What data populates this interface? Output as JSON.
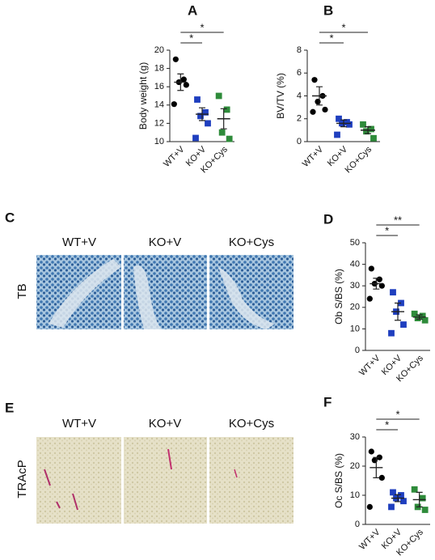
{
  "chart_data": [
    {
      "type": "dotplot",
      "title": "A",
      "ylabel": "Body weight (g)",
      "ylim": [
        10,
        20
      ],
      "yticks": [
        10,
        12,
        14,
        16,
        18,
        20
      ],
      "series": [
        {
          "name": "WT+V",
          "color": "#000000",
          "marker": "circle",
          "values": [
            19.0,
            16.8,
            16.5,
            16.2,
            14.1
          ],
          "mean": 16.5,
          "error": 0.9
        },
        {
          "name": "KO+V",
          "color": "#1f3fbf",
          "marker": "square",
          "values": [
            14.6,
            13.2,
            12.8,
            12.0,
            10.4
          ],
          "mean": 13.0,
          "error": 0.7
        },
        {
          "name": "KO+Cys",
          "color": "#2e8b3a",
          "marker": "square",
          "values": [
            15.0,
            13.5,
            11.0,
            10.3
          ],
          "mean": 12.5,
          "error": 1.1
        }
      ],
      "annotations": [
        {
          "text": "*",
          "between": [
            "WT+V",
            "KO+V"
          ]
        },
        {
          "text": "*",
          "between": [
            "WT+V",
            "KO+Cys"
          ]
        }
      ]
    },
    {
      "type": "dotplot",
      "title": "B",
      "ylabel": "BV/TV (%)",
      "ylim": [
        0,
        8
      ],
      "yticks": [
        0,
        2,
        4,
        6,
        8
      ],
      "series": [
        {
          "name": "WT+V",
          "color": "#000000",
          "marker": "circle",
          "values": [
            5.4,
            4.0,
            3.5,
            2.8,
            2.6
          ],
          "mean": 4.0,
          "error": 0.8
        },
        {
          "name": "KO+V",
          "color": "#1f3fbf",
          "marker": "square",
          "values": [
            2.0,
            1.7,
            1.6,
            1.5,
            0.6
          ],
          "mean": 1.6,
          "error": 0.3
        },
        {
          "name": "KO+Cys",
          "color": "#2e8b3a",
          "marker": "square",
          "values": [
            1.5,
            1.1,
            0.9,
            0.3
          ],
          "mean": 1.0,
          "error": 0.3
        }
      ],
      "annotations": [
        {
          "text": "*",
          "between": [
            "WT+V",
            "KO+V"
          ]
        },
        {
          "text": "*",
          "between": [
            "WT+V",
            "KO+Cys"
          ]
        }
      ]
    },
    {
      "type": "dotplot",
      "title": "D",
      "ylabel": "Ob S/BS (%)",
      "ylim": [
        0,
        50
      ],
      "yticks": [
        0,
        10,
        20,
        30,
        40,
        50
      ],
      "series": [
        {
          "name": "WT+V",
          "color": "#000000",
          "marker": "circle",
          "values": [
            38,
            33,
            31,
            30,
            24
          ],
          "mean": 31,
          "error": 2.5
        },
        {
          "name": "KO+V",
          "color": "#1f3fbf",
          "marker": "square",
          "values": [
            27,
            22,
            18,
            12,
            8
          ],
          "mean": 18,
          "error": 4
        },
        {
          "name": "KO+Cys",
          "color": "#2e8b3a",
          "marker": "square",
          "values": [
            17,
            16,
            15,
            14
          ],
          "mean": 15.5,
          "error": 1
        }
      ],
      "annotations": [
        {
          "text": "*",
          "between": [
            "WT+V",
            "KO+V"
          ]
        },
        {
          "text": "**",
          "between": [
            "WT+V",
            "KO+Cys"
          ]
        }
      ]
    },
    {
      "type": "dotplot",
      "title": "F",
      "ylabel": "Oc S/BS (%)",
      "ylim": [
        0,
        30
      ],
      "yticks": [
        0,
        10,
        20,
        30
      ],
      "series": [
        {
          "name": "WT+V",
          "color": "#000000",
          "marker": "circle",
          "values": [
            25,
            23,
            22,
            16,
            6
          ],
          "mean": 19.5,
          "error": 3.5
        },
        {
          "name": "KO+V",
          "color": "#1f3fbf",
          "marker": "square",
          "values": [
            11,
            10,
            9,
            8,
            6
          ],
          "mean": 9,
          "error": 1.2
        },
        {
          "name": "KO+Cys",
          "color": "#2e8b3a",
          "marker": "square",
          "values": [
            12,
            9,
            6,
            5
          ],
          "mean": 8.5,
          "error": 2.5
        }
      ],
      "annotations": [
        {
          "text": "*",
          "between": [
            "WT+V",
            "KO+V"
          ]
        },
        {
          "text": "*",
          "between": [
            "WT+V",
            "KO+Cys"
          ]
        }
      ]
    }
  ],
  "micrographs": [
    {
      "label": "C",
      "row_label": "TB",
      "columns": [
        "WT+V",
        "KO+V",
        "KO+Cys"
      ]
    },
    {
      "label": "E",
      "row_label": "TRAcP",
      "columns": [
        "WT+V",
        "KO+V",
        "KO+Cys"
      ]
    }
  ]
}
